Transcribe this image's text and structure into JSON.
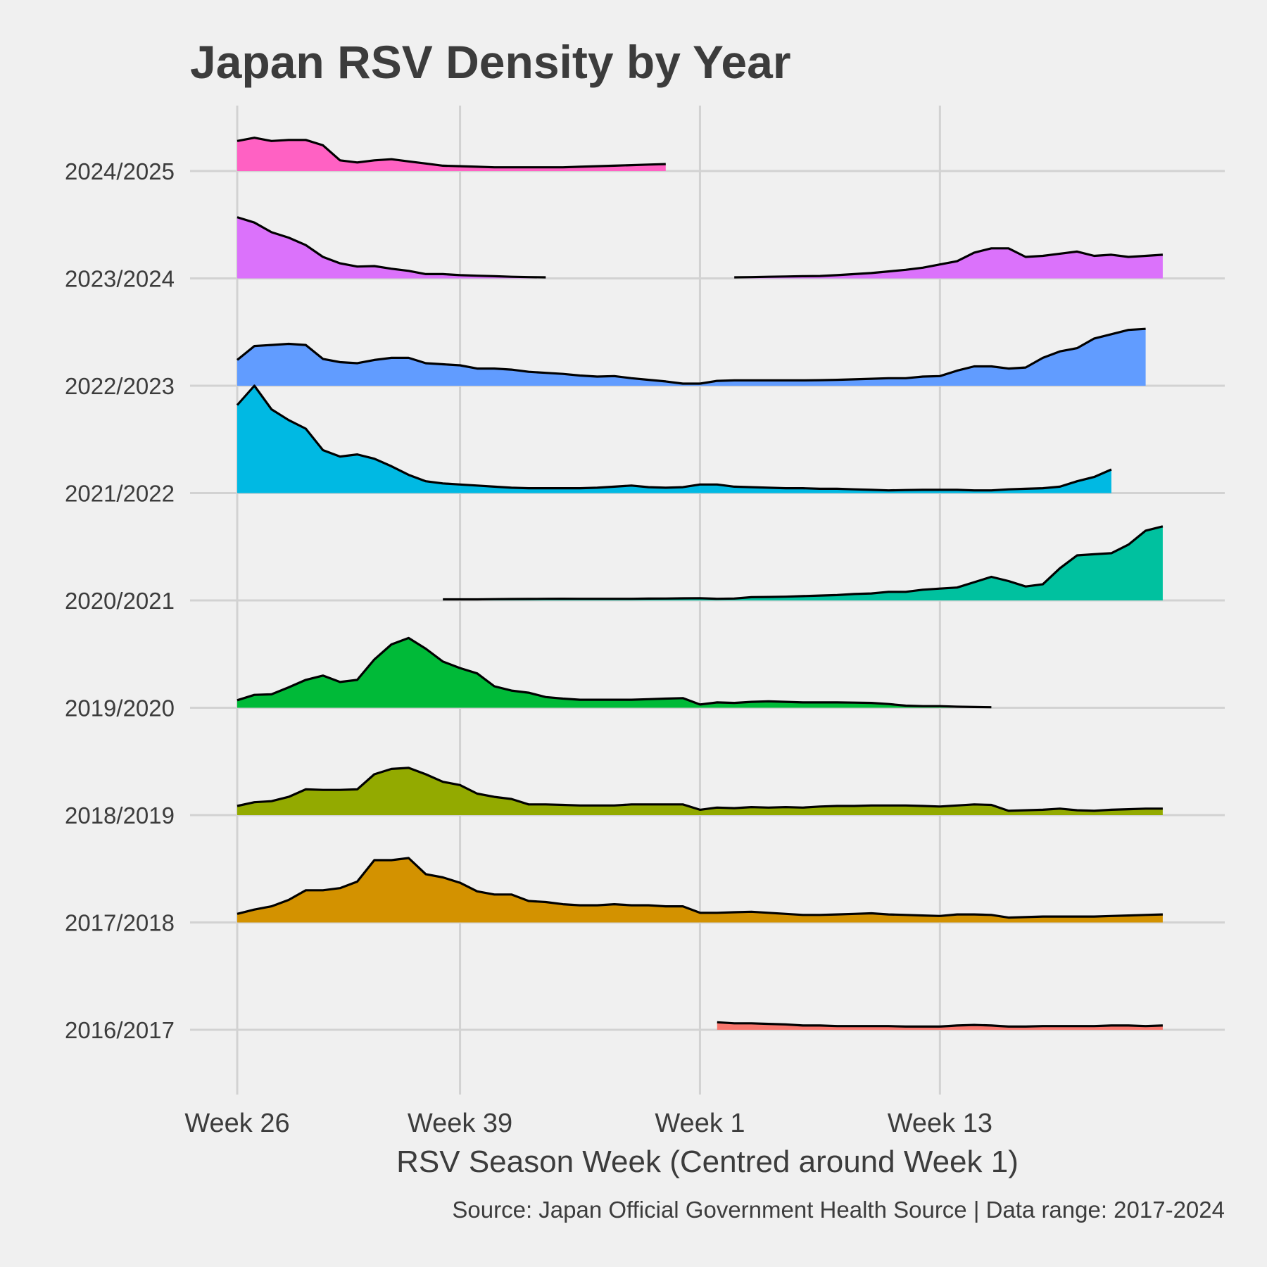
{
  "chart_data": {
    "type": "area",
    "title": "Japan RSV Density by Year",
    "xlabel": "RSV Season Week (Centred around Week 1)",
    "caption": "Source: Japan Official Government Health Source | Data range: 2017-2024",
    "x_tick_labels": [
      "Week 26",
      "Week 39",
      "Week 1",
      "Week 13"
    ],
    "x_tick_index": [
      0,
      13,
      27,
      41
    ],
    "x_range_index": [
      0,
      55
    ],
    "grid": true,
    "colors": {
      "background": "#f0f0f0",
      "grid": "#d2d2d2",
      "text": "#3c3c3c",
      "outline": "#000000"
    },
    "series": [
      {
        "name": "2016/2017",
        "color": "#F8766D",
        "start_index": 28,
        "values": [
          0.07,
          0.06,
          0.06,
          0.055,
          0.05,
          0.04,
          0.04,
          0.035,
          0.035,
          0.035,
          0.035,
          0.03,
          0.03,
          0.03,
          0.04,
          0.045,
          0.04,
          0.03,
          0.03,
          0.035,
          0.035,
          0.035,
          0.035,
          0.04,
          0.04,
          0.035,
          0.04
        ]
      },
      {
        "name": "2017/2018",
        "color": "#D39200",
        "start_index": 0,
        "values": [
          0.08,
          0.12,
          0.15,
          0.21,
          0.3,
          0.3,
          0.32,
          0.38,
          0.58,
          0.58,
          0.6,
          0.45,
          0.42,
          0.37,
          0.29,
          0.26,
          0.26,
          0.2,
          0.19,
          0.17,
          0.16,
          0.16,
          0.17,
          0.16,
          0.16,
          0.15,
          0.15,
          0.09,
          0.09,
          0.095,
          0.1,
          0.09,
          0.08,
          0.07,
          0.07,
          0.075,
          0.08,
          0.085,
          0.075,
          0.07,
          0.065,
          0.06,
          0.075,
          0.075,
          0.07,
          0.045,
          0.05,
          0.055,
          0.055,
          0.055,
          0.055,
          0.06,
          0.065,
          0.07,
          0.075
        ]
      },
      {
        "name": "2018/2019",
        "color": "#93AA00",
        "start_index": 0,
        "values": [
          0.085,
          0.12,
          0.13,
          0.17,
          0.24,
          0.235,
          0.235,
          0.24,
          0.38,
          0.43,
          0.44,
          0.38,
          0.31,
          0.28,
          0.2,
          0.17,
          0.15,
          0.1,
          0.1,
          0.095,
          0.09,
          0.09,
          0.09,
          0.1,
          0.1,
          0.1,
          0.1,
          0.05,
          0.07,
          0.065,
          0.075,
          0.07,
          0.075,
          0.07,
          0.08,
          0.085,
          0.085,
          0.09,
          0.09,
          0.09,
          0.085,
          0.08,
          0.09,
          0.1,
          0.095,
          0.04,
          0.045,
          0.05,
          0.06,
          0.045,
          0.04,
          0.05,
          0.055,
          0.06,
          0.06
        ]
      },
      {
        "name": "2019/2020",
        "color": "#00BA38",
        "start_index": 0,
        "values": [
          0.07,
          0.12,
          0.125,
          0.19,
          0.26,
          0.3,
          0.24,
          0.26,
          0.45,
          0.59,
          0.65,
          0.55,
          0.43,
          0.37,
          0.32,
          0.2,
          0.16,
          0.14,
          0.1,
          0.085,
          0.075,
          0.075,
          0.075,
          0.075,
          0.08,
          0.085,
          0.09,
          0.03,
          0.05,
          0.045,
          0.055,
          0.06,
          0.055,
          0.05,
          0.05,
          0.05,
          0.048,
          0.045,
          0.035,
          0.02,
          0.015,
          0.015,
          0.01,
          0.007,
          0.005
        ]
      },
      {
        "name": "2020/2021",
        "color": "#00C19F",
        "start_index": 12,
        "values": [
          0.01,
          0.01,
          0.01,
          0.012,
          0.013,
          0.014,
          0.015,
          0.016,
          0.015,
          0.015,
          0.015,
          0.015,
          0.017,
          0.018,
          0.02,
          0.021,
          0.015,
          0.018,
          0.03,
          0.032,
          0.035,
          0.04,
          0.045,
          0.05,
          0.06,
          0.065,
          0.08,
          0.08,
          0.1,
          0.11,
          0.12,
          0.17,
          0.22,
          0.18,
          0.13,
          0.15,
          0.3,
          0.42,
          0.43,
          0.44,
          0.52,
          0.65,
          0.69
        ]
      },
      {
        "name": "2021/2022",
        "color": "#00B9E3",
        "start_index": 0,
        "values": [
          0.82,
          1.0,
          0.78,
          0.68,
          0.6,
          0.4,
          0.34,
          0.36,
          0.32,
          0.25,
          0.17,
          0.11,
          0.09,
          0.08,
          0.07,
          0.06,
          0.05,
          0.045,
          0.045,
          0.045,
          0.045,
          0.05,
          0.06,
          0.07,
          0.055,
          0.05,
          0.055,
          0.08,
          0.08,
          0.06,
          0.055,
          0.05,
          0.045,
          0.045,
          0.04,
          0.04,
          0.035,
          0.03,
          0.025,
          0.028,
          0.03,
          0.03,
          0.03,
          0.025,
          0.025,
          0.035,
          0.04,
          0.045,
          0.06,
          0.11,
          0.15,
          0.22
        ]
      },
      {
        "name": "2022/2023",
        "color": "#619CFF",
        "start_index": 0,
        "values": [
          0.24,
          0.37,
          0.38,
          0.39,
          0.38,
          0.25,
          0.22,
          0.21,
          0.24,
          0.26,
          0.26,
          0.21,
          0.2,
          0.19,
          0.16,
          0.16,
          0.15,
          0.13,
          0.12,
          0.11,
          0.095,
          0.085,
          0.09,
          0.07,
          0.055,
          0.04,
          0.02,
          0.02,
          0.045,
          0.05,
          0.05,
          0.05,
          0.05,
          0.05,
          0.052,
          0.055,
          0.06,
          0.065,
          0.07,
          0.07,
          0.085,
          0.09,
          0.14,
          0.18,
          0.18,
          0.16,
          0.17,
          0.26,
          0.32,
          0.35,
          0.44,
          0.48,
          0.52,
          0.53
        ]
      },
      {
        "name": "2023/2024",
        "color": "#DB72FB",
        "start_index": 0,
        "segments": [
          {
            "start_index": 0,
            "values": [
              0.57,
              0.52,
              0.43,
              0.38,
              0.31,
              0.2,
              0.14,
              0.11,
              0.115,
              0.09,
              0.07,
              0.04,
              0.04,
              0.03,
              0.025,
              0.02,
              0.015,
              0.012,
              0.01
            ]
          },
          {
            "start_index": 29,
            "values": [
              0.01,
              0.012,
              0.015,
              0.018,
              0.02,
              0.022,
              0.03,
              0.04,
              0.05,
              0.065,
              0.08,
              0.1,
              0.13,
              0.16,
              0.24,
              0.28,
              0.28,
              0.2,
              0.21,
              0.23,
              0.25,
              0.21,
              0.22,
              0.2,
              0.21,
              0.22
            ]
          }
        ]
      },
      {
        "name": "2024/2025",
        "color": "#FF61C3",
        "start_index": 0,
        "values": [
          0.28,
          0.31,
          0.28,
          0.29,
          0.29,
          0.24,
          0.1,
          0.08,
          0.1,
          0.11,
          0.09,
          0.07,
          0.05,
          0.045,
          0.04,
          0.035,
          0.035,
          0.035,
          0.035,
          0.035,
          0.04,
          0.045,
          0.05,
          0.055,
          0.06,
          0.065
        ]
      }
    ],
    "row_scale_note": "ridgeline: each row's density scaled relative to the row spacing"
  }
}
